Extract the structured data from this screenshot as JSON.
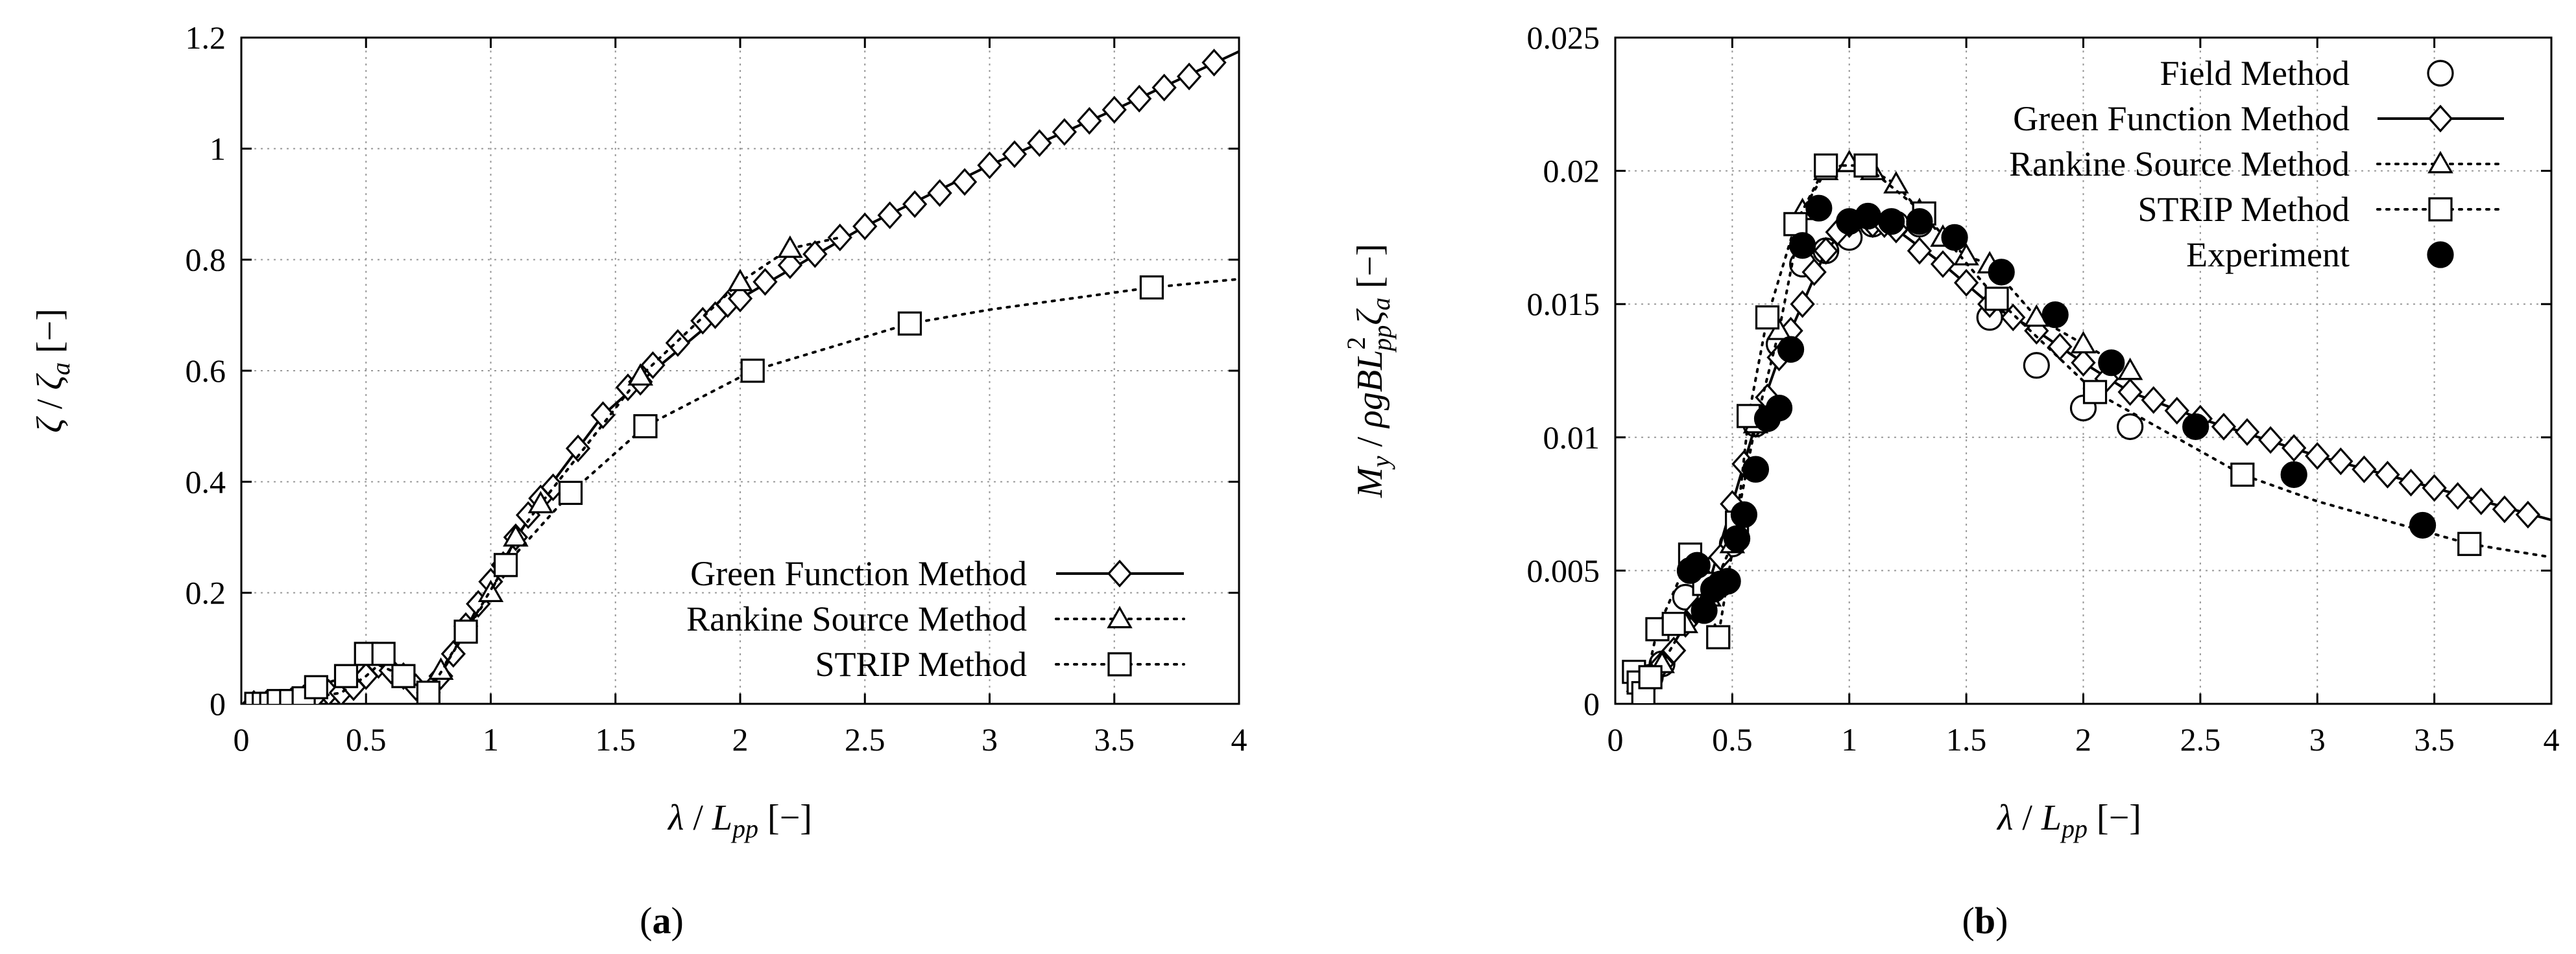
{
  "figure": {
    "panel_labels": [
      {
        "open": "(",
        "letter": "a",
        "close": ")"
      },
      {
        "open": "(",
        "letter": "b",
        "close": ")"
      }
    ]
  },
  "chart_data": [
    {
      "id": "a",
      "type": "line",
      "xlabel": "λ / L_pp [−]",
      "ylabel": "ζ / ζ_a [−]",
      "xlabel_parts": {
        "sym": "λ",
        "sep": " / ",
        "L": "L",
        "sub": "pp",
        "unit": " [−]"
      },
      "ylabel_parts": {
        "sym": "ζ",
        "sep": " / ",
        "z": "ζ",
        "sub": "a",
        "unit": " [−]"
      },
      "xlim": [
        0,
        4
      ],
      "ylim": [
        0,
        1.2
      ],
      "xticks": [
        0,
        0.5,
        1,
        1.5,
        2,
        2.5,
        3,
        3.5,
        4
      ],
      "xtick_labels": [
        "0",
        "0.5",
        "1",
        "1.5",
        "2",
        "2.5",
        "3",
        "3.5",
        "4"
      ],
      "yticks": [
        0,
        0.2,
        0.4,
        0.6,
        0.8,
        1,
        1.2
      ],
      "ytick_labels": [
        "0",
        "0.2",
        "0.4",
        "0.6",
        "0.8",
        "1",
        "1.2"
      ],
      "grid": true,
      "legend_position": "lower-right",
      "series": [
        {
          "name": "Green Function Method",
          "marker": "diamond",
          "line": "solid",
          "x": [
            0.05,
            0.1,
            0.15,
            0.2,
            0.25,
            0.3,
            0.35,
            0.4,
            0.45,
            0.5,
            0.55,
            0.6,
            0.65,
            0.7,
            0.75,
            0.8,
            0.85,
            0.9,
            0.95,
            1.0,
            1.05,
            1.1,
            1.15,
            1.2,
            1.25,
            1.35,
            1.45,
            1.55,
            1.6,
            1.65,
            1.75,
            1.85,
            1.9,
            1.95,
            2.0,
            2.1,
            2.2,
            2.3,
            2.4,
            2.5,
            2.6,
            2.7,
            2.8,
            2.9,
            3.0,
            3.1,
            3.2,
            3.3,
            3.4,
            3.5,
            3.6,
            3.7,
            3.8,
            3.9
          ],
          "y": [
            0.0,
            0.0,
            0.0,
            0.005,
            0.01,
            0.015,
            0.02,
            0.02,
            0.03,
            0.05,
            0.07,
            0.06,
            0.05,
            0.03,
            0.02,
            0.05,
            0.09,
            0.14,
            0.18,
            0.22,
            0.25,
            0.3,
            0.34,
            0.37,
            0.39,
            0.46,
            0.52,
            0.57,
            0.58,
            0.61,
            0.65,
            0.69,
            0.7,
            0.72,
            0.73,
            0.76,
            0.79,
            0.81,
            0.84,
            0.86,
            0.88,
            0.9,
            0.92,
            0.94,
            0.97,
            0.99,
            1.01,
            1.03,
            1.05,
            1.07,
            1.09,
            1.11,
            1.13,
            1.155
          ],
          "line_x": [
            0.05,
            0.2,
            0.4,
            0.5,
            0.55,
            0.6,
            0.75,
            0.85,
            1.0,
            1.2,
            1.45,
            1.6,
            2.0,
            2.5,
            3.0,
            3.5,
            4.0
          ],
          "line_y": [
            0.0,
            0.005,
            0.02,
            0.05,
            0.07,
            0.06,
            0.02,
            0.09,
            0.22,
            0.37,
            0.52,
            0.58,
            0.73,
            0.86,
            0.97,
            1.07,
            1.175
          ]
        },
        {
          "name": "Rankine Source Method",
          "marker": "triangle",
          "line": "dotted",
          "x": [
            0.8,
            1.0,
            1.1,
            1.2,
            1.6,
            2.0,
            2.2
          ],
          "y": [
            0.06,
            0.2,
            0.3,
            0.36,
            0.59,
            0.76,
            0.82
          ],
          "line_x": [
            0.05,
            0.2,
            0.4,
            0.5,
            0.55,
            0.6,
            0.75,
            0.8,
            1.0,
            1.1,
            1.2,
            1.6,
            2.0,
            2.2,
            2.4
          ],
          "line_y": [
            0.0,
            0.005,
            0.02,
            0.05,
            0.07,
            0.06,
            0.02,
            0.06,
            0.2,
            0.3,
            0.36,
            0.59,
            0.76,
            0.82,
            0.84
          ]
        },
        {
          "name": "STRIP Method",
          "marker": "square",
          "line": "dotted",
          "x": [
            0.06,
            0.09,
            0.12,
            0.15,
            0.2,
            0.25,
            0.3,
            0.42,
            0.5,
            0.57,
            0.65,
            0.75,
            0.9,
            1.06,
            1.32,
            1.62,
            2.05,
            2.68,
            3.65
          ],
          "y": [
            0.0,
            0.0,
            0.0,
            0.005,
            0.005,
            0.01,
            0.03,
            0.05,
            0.09,
            0.09,
            0.05,
            0.02,
            0.13,
            0.25,
            0.38,
            0.5,
            0.6,
            0.685,
            0.75
          ],
          "line_x": [
            0.05,
            0.2,
            0.3,
            0.42,
            0.5,
            0.57,
            0.65,
            0.75,
            0.9,
            1.06,
            1.32,
            1.62,
            2.05,
            2.68,
            3.0,
            3.65,
            4.0
          ],
          "line_y": [
            0.0,
            0.005,
            0.03,
            0.05,
            0.09,
            0.09,
            0.05,
            0.02,
            0.13,
            0.25,
            0.38,
            0.5,
            0.6,
            0.685,
            0.71,
            0.75,
            0.765
          ]
        }
      ]
    },
    {
      "id": "b",
      "type": "line",
      "xlabel": "λ / L_pp [−]",
      "ylabel": "M_y / ρgBL_pp^2 ζ_a [−]",
      "xlabel_parts": {
        "sym": "λ",
        "sep": " / ",
        "L": "L",
        "sub": "pp",
        "unit": " [−]"
      },
      "ylabel_parts": {
        "M": "M",
        "msub": "y",
        "sep": " / ",
        "mid": "ρgBL",
        "sup": "2",
        "sub": "pp",
        "z": "ζ",
        "zsub": "a",
        "unit": " [−]"
      },
      "xlim": [
        0,
        4
      ],
      "ylim": [
        0,
        0.025
      ],
      "xticks": [
        0,
        0.5,
        1,
        1.5,
        2,
        2.5,
        3,
        3.5,
        4
      ],
      "xtick_labels": [
        "0",
        "0.5",
        "1",
        "1.5",
        "2",
        "2.5",
        "3",
        "3.5",
        "4"
      ],
      "yticks": [
        0,
        0.005,
        0.01,
        0.015,
        0.02,
        0.025
      ],
      "ytick_labels": [
        "0",
        "0.005",
        "0.01",
        "0.015",
        "0.02",
        "0.025"
      ],
      "grid": true,
      "legend_position": "top-right",
      "series": [
        {
          "name": "Field Method",
          "marker": "circle",
          "line": "none",
          "x": [
            0.1,
            0.15,
            0.2,
            0.3,
            0.4,
            0.5,
            0.6,
            0.7,
            0.8,
            0.9,
            1.0,
            1.1,
            1.2,
            1.3,
            1.6,
            1.8,
            2.0,
            2.2
          ],
          "y": [
            0.001,
            0.001,
            0.0015,
            0.004,
            0.005,
            0.006,
            0.0105,
            0.0135,
            0.0165,
            0.017,
            0.0175,
            0.018,
            0.018,
            0.018,
            0.0145,
            0.0127,
            0.0111,
            0.0104
          ]
        },
        {
          "name": "Green Function Method",
          "marker": "diamond",
          "line": "solid",
          "x": [
            0.1,
            0.15,
            0.2,
            0.25,
            0.3,
            0.35,
            0.4,
            0.45,
            0.5,
            0.55,
            0.6,
            0.65,
            0.7,
            0.75,
            0.8,
            0.85,
            0.9,
            0.95,
            1.0,
            1.1,
            1.15,
            1.2,
            1.3,
            1.4,
            1.5,
            1.6,
            1.7,
            1.8,
            1.9,
            2.0,
            2.1,
            2.2,
            2.3,
            2.4,
            2.5,
            2.6,
            2.7,
            2.8,
            2.9,
            3.0,
            3.1,
            3.2,
            3.3,
            3.4,
            3.5,
            3.6,
            3.7,
            3.8,
            3.9
          ],
          "y": [
            0.001,
            0.001,
            0.0015,
            0.002,
            0.003,
            0.0035,
            0.0045,
            0.0055,
            0.0075,
            0.009,
            0.0105,
            0.0115,
            0.013,
            0.014,
            0.015,
            0.0162,
            0.017,
            0.0177,
            0.018,
            0.018,
            0.018,
            0.0178,
            0.017,
            0.0165,
            0.0158,
            0.015,
            0.0145,
            0.014,
            0.0134,
            0.0128,
            0.0122,
            0.0117,
            0.0114,
            0.011,
            0.0107,
            0.0104,
            0.0102,
            0.0099,
            0.0096,
            0.0093,
            0.0091,
            0.0088,
            0.0086,
            0.0083,
            0.0081,
            0.0078,
            0.0076,
            0.0073,
            0.0071
          ],
          "line_x": [
            0.1,
            0.2,
            0.3,
            0.4,
            0.5,
            0.6,
            0.7,
            0.8,
            0.9,
            1.0,
            1.2,
            1.4,
            1.6,
            1.8,
            2.0,
            2.2,
            2.5,
            3.0,
            3.5,
            4.0
          ],
          "line_y": [
            0.001,
            0.0015,
            0.003,
            0.0045,
            0.0075,
            0.0105,
            0.013,
            0.015,
            0.017,
            0.018,
            0.0178,
            0.0165,
            0.015,
            0.014,
            0.0128,
            0.0117,
            0.0107,
            0.0093,
            0.0081,
            0.0069
          ]
        },
        {
          "name": "Rankine Source Method",
          "marker": "triangle",
          "line": "dotted",
          "x": [
            0.1,
            0.2,
            0.3,
            0.4,
            0.5,
            0.6,
            0.7,
            0.8,
            0.9,
            1.0,
            1.1,
            1.2,
            1.3,
            1.4,
            1.5,
            1.6,
            1.8,
            2.0,
            2.2
          ],
          "y": [
            0.0008,
            0.0015,
            0.003,
            0.004,
            0.006,
            0.0105,
            0.014,
            0.0185,
            0.02,
            0.0203,
            0.02,
            0.0195,
            0.0185,
            0.0175,
            0.0168,
            0.0165,
            0.0145,
            0.0135,
            0.0125
          ],
          "line_x": [
            0.1,
            0.2,
            0.3,
            0.4,
            0.5,
            0.6,
            0.7,
            0.8,
            0.9,
            1.0,
            1.1,
            1.2,
            1.3,
            1.4,
            1.5,
            1.6,
            1.8,
            2.0,
            2.2
          ],
          "line_y": [
            0.0008,
            0.0015,
            0.003,
            0.004,
            0.006,
            0.0105,
            0.014,
            0.0185,
            0.02,
            0.0203,
            0.02,
            0.0195,
            0.0185,
            0.0175,
            0.0168,
            0.0165,
            0.0145,
            0.0135,
            0.0125
          ]
        },
        {
          "name": "STRIP Method",
          "marker": "square",
          "line": "dotted",
          "x": [
            0.08,
            0.1,
            0.12,
            0.15,
            0.18,
            0.25,
            0.32,
            0.38,
            0.44,
            0.52,
            0.57,
            0.65,
            0.77,
            0.9,
            1.07,
            1.32,
            1.63,
            2.05,
            2.68,
            3.65
          ],
          "y": [
            0.0012,
            0.0008,
            0.0004,
            0.001,
            0.0028,
            0.003,
            0.0056,
            0.0045,
            0.0025,
            0.0068,
            0.0108,
            0.0145,
            0.018,
            0.0202,
            0.0202,
            0.0184,
            0.0152,
            0.0117,
            0.0086,
            0.006
          ],
          "line_x": [
            0.08,
            0.12,
            0.18,
            0.32,
            0.38,
            0.44,
            0.52,
            0.57,
            0.65,
            0.77,
            0.9,
            1.07,
            1.32,
            1.63,
            2.05,
            2.68,
            3.0,
            3.65,
            4.0
          ],
          "line_y": [
            0.0012,
            0.0004,
            0.0028,
            0.0056,
            0.0045,
            0.0025,
            0.0068,
            0.0108,
            0.0145,
            0.018,
            0.0202,
            0.0202,
            0.0184,
            0.0152,
            0.0117,
            0.0086,
            0.0076,
            0.006,
            0.0055
          ]
        },
        {
          "name": "Experiment",
          "marker": "filled-circle",
          "line": "none",
          "x": [
            0.32,
            0.35,
            0.38,
            0.42,
            0.45,
            0.48,
            0.52,
            0.55,
            0.6,
            0.65,
            0.7,
            0.75,
            0.8,
            0.87,
            1.0,
            1.08,
            1.18,
            1.3,
            1.45,
            1.65,
            1.88,
            2.12,
            2.48,
            2.9,
            3.45
          ],
          "y": [
            0.005,
            0.0052,
            0.0035,
            0.0043,
            0.0045,
            0.0046,
            0.0062,
            0.0071,
            0.0088,
            0.0107,
            0.0111,
            0.0133,
            0.0172,
            0.0186,
            0.0181,
            0.0183,
            0.0181,
            0.0181,
            0.0175,
            0.0162,
            0.0146,
            0.0128,
            0.0104,
            0.0086,
            0.0067
          ]
        }
      ]
    }
  ]
}
